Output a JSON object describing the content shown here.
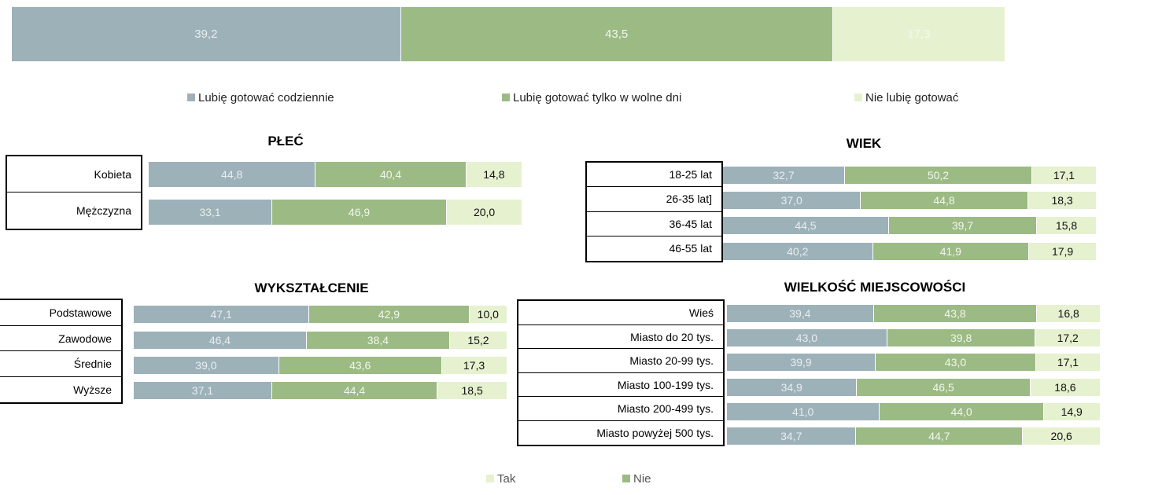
{
  "colors": {
    "daily": "#9db1b9",
    "weekend": "#9cba84",
    "dislike": "#e6f1d0",
    "dislike_text_top": "#f4f8ec"
  },
  "chart_data": [
    {
      "type": "bar",
      "stacked": true,
      "orientation": "horizontal",
      "categories": [
        ""
      ],
      "series": [
        {
          "name": "Lubię gotować codziennie",
          "values": [
            39.2
          ],
          "labels": [
            "39,2"
          ]
        },
        {
          "name": "Lubię gotować tylko w wolne dni",
          "values": [
            43.5
          ],
          "labels": [
            "43,5"
          ]
        },
        {
          "name": "Nie lubię gotować",
          "values": [
            17.3
          ],
          "labels": [
            "17,3"
          ]
        }
      ],
      "legend": "bottom"
    },
    {
      "type": "bar",
      "stacked": true,
      "orientation": "horizontal",
      "title": "PŁEĆ",
      "categories": [
        "Kobieta",
        "Mężczyzna"
      ],
      "series": [
        {
          "name": "Lubię gotować codziennie",
          "values": [
            44.8,
            33.1
          ],
          "labels": [
            "44,8",
            "33,1"
          ]
        },
        {
          "name": "Lubię gotować tylko w wolne dni",
          "values": [
            40.4,
            46.9
          ],
          "labels": [
            "40,4",
            "46,9"
          ]
        },
        {
          "name": "Nie lubię gotować",
          "values": [
            14.8,
            20.0
          ],
          "labels": [
            "14,8",
            "20,0"
          ]
        }
      ]
    },
    {
      "type": "bar",
      "stacked": true,
      "orientation": "horizontal",
      "title": "WIEK",
      "categories": [
        "18-25 lat",
        "26-35 lat]",
        "36-45 lat",
        "46-55 lat"
      ],
      "series": [
        {
          "name": "Lubię gotować codziennie",
          "values": [
            32.7,
            37.0,
            44.5,
            40.2
          ],
          "labels": [
            "32,7",
            "37,0",
            "44,5",
            "40,2"
          ]
        },
        {
          "name": "Lubię gotować tylko w wolne dni",
          "values": [
            50.2,
            44.8,
            39.7,
            41.9
          ],
          "labels": [
            "50,2",
            "44,8",
            "39,7",
            "41,9"
          ]
        },
        {
          "name": "Nie lubię gotować",
          "values": [
            17.1,
            18.3,
            15.8,
            17.9
          ],
          "labels": [
            "17,1",
            "18,3",
            "15,8",
            "17,9"
          ]
        }
      ]
    },
    {
      "type": "bar",
      "stacked": true,
      "orientation": "horizontal",
      "title": "WYKSZTAŁCENIE",
      "categories": [
        "Podstawowe",
        "Zawodowe",
        "Średnie",
        "Wyższe"
      ],
      "series": [
        {
          "name": "Lubię gotować codziennie",
          "values": [
            47.1,
            46.4,
            39.0,
            37.1
          ],
          "labels": [
            "47,1",
            "46,4",
            "39,0",
            "37,1"
          ]
        },
        {
          "name": "Lubię gotować tylko w wolne dni",
          "values": [
            42.9,
            38.4,
            43.6,
            44.4
          ],
          "labels": [
            "42,9",
            "38,4",
            "43,6",
            "44,4"
          ]
        },
        {
          "name": "Nie lubię gotować",
          "values": [
            10.0,
            15.2,
            17.3,
            18.5
          ],
          "labels": [
            "10,0",
            "15,2",
            "17,3",
            "18,5"
          ]
        }
      ]
    },
    {
      "type": "bar",
      "stacked": true,
      "orientation": "horizontal",
      "title": "WIELKOŚĆ MIEJSCOWOŚCI",
      "categories": [
        "Wieś",
        "Miasto do 20 tys.",
        "Miasto 20-99 tys.",
        "Miasto 100-199 tys.",
        "Miasto 200-499 tys.",
        "Miasto powyżej 500 tys."
      ],
      "series": [
        {
          "name": "Lubię gotować codziennie",
          "values": [
            39.4,
            43.0,
            39.9,
            34.9,
            41.0,
            34.7
          ],
          "labels": [
            "39,4",
            "43,0",
            "39,9",
            "34,9",
            "41,0",
            "34,7"
          ]
        },
        {
          "name": "Lubię gotować tylko w wolne dni",
          "values": [
            43.8,
            39.8,
            43.0,
            46.5,
            44.0,
            44.7
          ],
          "labels": [
            "43,8",
            "39,8",
            "43,0",
            "46,5",
            "44,0",
            "44,7"
          ]
        },
        {
          "name": "Nie lubię gotować",
          "values": [
            16.8,
            17.2,
            17.1,
            18.6,
            14.9,
            20.6
          ],
          "labels": [
            "16,8",
            "17,2",
            "17,1",
            "18,6",
            "14,9",
            "20,6"
          ]
        }
      ]
    }
  ],
  "legend_main": [
    {
      "label": "Lubię gotować codziennie",
      "color": "#9db1b9"
    },
    {
      "label": "Lubię gotować tylko w wolne dni",
      "color": "#9cba84"
    },
    {
      "label": "Nie lubię gotować",
      "color": "#e6f1d0"
    }
  ],
  "legend_bottom": [
    {
      "label": "Tak",
      "color": "#e6f1d0"
    },
    {
      "label": "Nie",
      "color": "#9cba84"
    }
  ]
}
